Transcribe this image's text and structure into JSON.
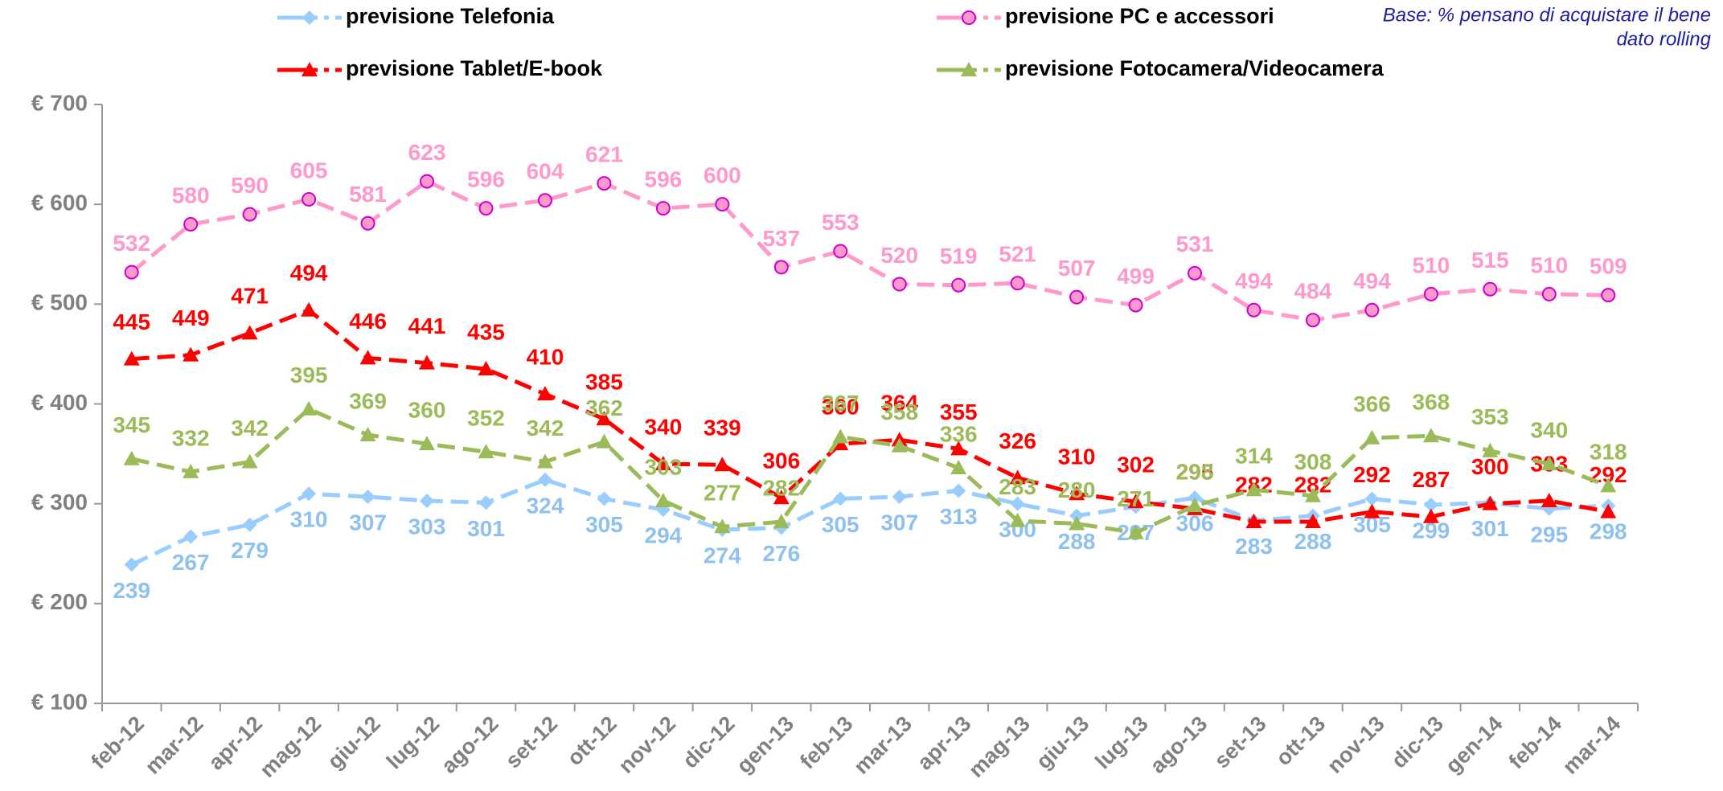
{
  "chart_data": {
    "type": "line",
    "note": [
      "Base: % pensano di acquistare il bene",
      "dato rolling"
    ],
    "categories": [
      "feb-12",
      "mar-12",
      "apr-12",
      "mag-12",
      "giu-12",
      "lug-12",
      "ago-12",
      "set-12",
      "ott-12",
      "nov-12",
      "dic-12",
      "gen-13",
      "feb-13",
      "mar-13",
      "apr-13",
      "mag-13",
      "giu-13",
      "lug-13",
      "ago-13",
      "set-13",
      "ott-13",
      "nov-13",
      "dic-13",
      "gen-14",
      "feb-14",
      "mar-14"
    ],
    "series": [
      {
        "name": "previsione Telefonia",
        "color": "#99CCFF",
        "marker": "diamond",
        "values": [
          239,
          267,
          279,
          310,
          307,
          303,
          301,
          324,
          305,
          294,
          274,
          276,
          305,
          307,
          313,
          300,
          288,
          297,
          306,
          283,
          288,
          305,
          299,
          301,
          295,
          298
        ]
      },
      {
        "name": "previsione PC e accessori",
        "color": "#FF99CC",
        "marker": "circle",
        "values": [
          532,
          580,
          590,
          605,
          581,
          623,
          596,
          604,
          621,
          596,
          600,
          537,
          553,
          520,
          519,
          521,
          507,
          499,
          531,
          494,
          484,
          494,
          510,
          515,
          510,
          509
        ]
      },
      {
        "name": "previsione Tablet/E-book",
        "color": "#FF0000",
        "marker": "triangle",
        "values": [
          445,
          449,
          471,
          494,
          446,
          441,
          435,
          410,
          385,
          340,
          339,
          306,
          360,
          364,
          355,
          326,
          310,
          302,
          295,
          282,
          282,
          292,
          287,
          300,
          303,
          292
        ]
      },
      {
        "name": "previsione Fotocamera/Videocamera",
        "color": "#9BBB59",
        "marker": "triangle",
        "values": [
          345,
          332,
          342,
          395,
          369,
          360,
          352,
          342,
          362,
          303,
          277,
          282,
          367,
          358,
          336,
          283,
          280,
          271,
          298,
          314,
          308,
          366,
          368,
          353,
          340,
          318
        ]
      }
    ],
    "ylim": [
      100,
      700
    ],
    "yticks": [
      {
        "value": 100,
        "label": "€ 100"
      },
      {
        "value": 200,
        "label": "€ 200"
      },
      {
        "value": 300,
        "label": "€ 300"
      },
      {
        "value": 400,
        "label": "€ 400"
      },
      {
        "value": 500,
        "label": "€ 500"
      },
      {
        "value": 600,
        "label": "€ 600"
      },
      {
        "value": 700,
        "label": "€ 700"
      }
    ],
    "grid": false
  }
}
